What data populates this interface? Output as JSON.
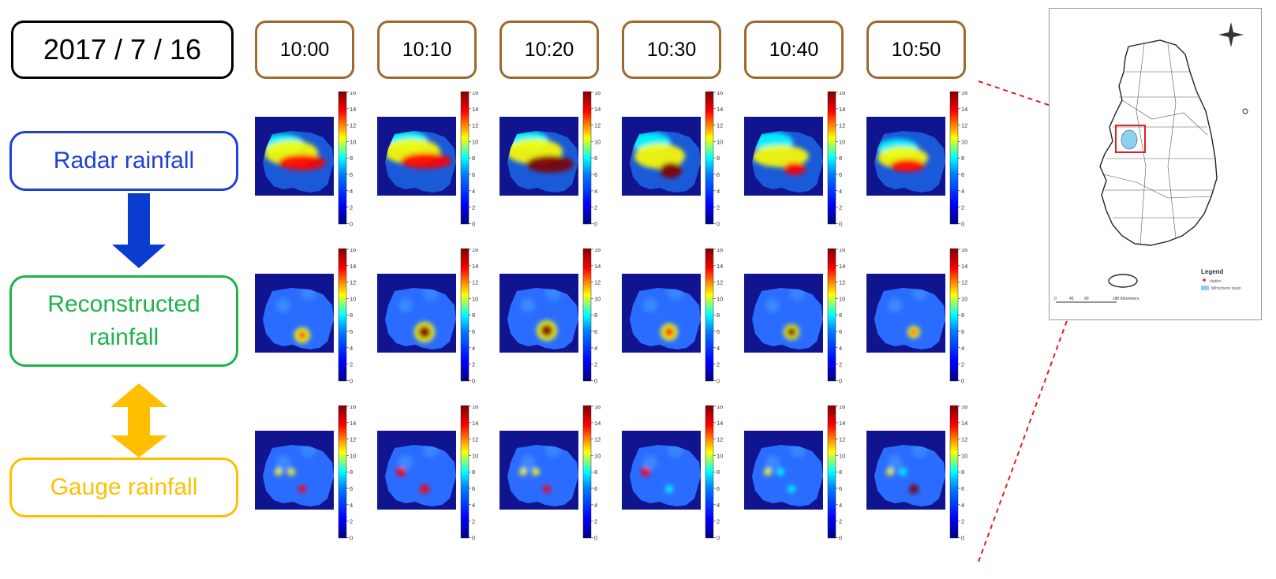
{
  "date": "2017 / 7 / 16",
  "times": [
    "10:00",
    "10:10",
    "10:20",
    "10:30",
    "10:40",
    "10:50"
  ],
  "rows": {
    "radar": "Radar rainfall",
    "reconstructed": "Reconstructed\nrainfall",
    "gauge": "Gauge rainfall"
  },
  "colorbar": {
    "ticks": [
      "16",
      "14",
      "12",
      "10",
      "8",
      "6",
      "4",
      "2",
      "0"
    ],
    "min": 0,
    "max": 16,
    "colors": {
      "navy": "#00007f",
      "blue": "#0000ff",
      "cyan": "#00ffff",
      "yellow": "#ffff00",
      "red": "#ff0000",
      "darkred": "#7f0000"
    }
  },
  "colors": {
    "date_border": "#000000",
    "time_border": "#9c6a2f",
    "radar": "#1f3fd6",
    "reconstructed": "#1db34b",
    "gauge": "#ffbf00",
    "dash": "#e02020",
    "field_bg": "#10158f"
  },
  "map": {
    "legend_title": "Legend",
    "legend_station": "station",
    "legend_basin": "Mihocheon basin",
    "scale": [
      "0",
      "45",
      "90",
      "180 Kilometers"
    ],
    "north_icon": "compass-rose-icon"
  }
}
